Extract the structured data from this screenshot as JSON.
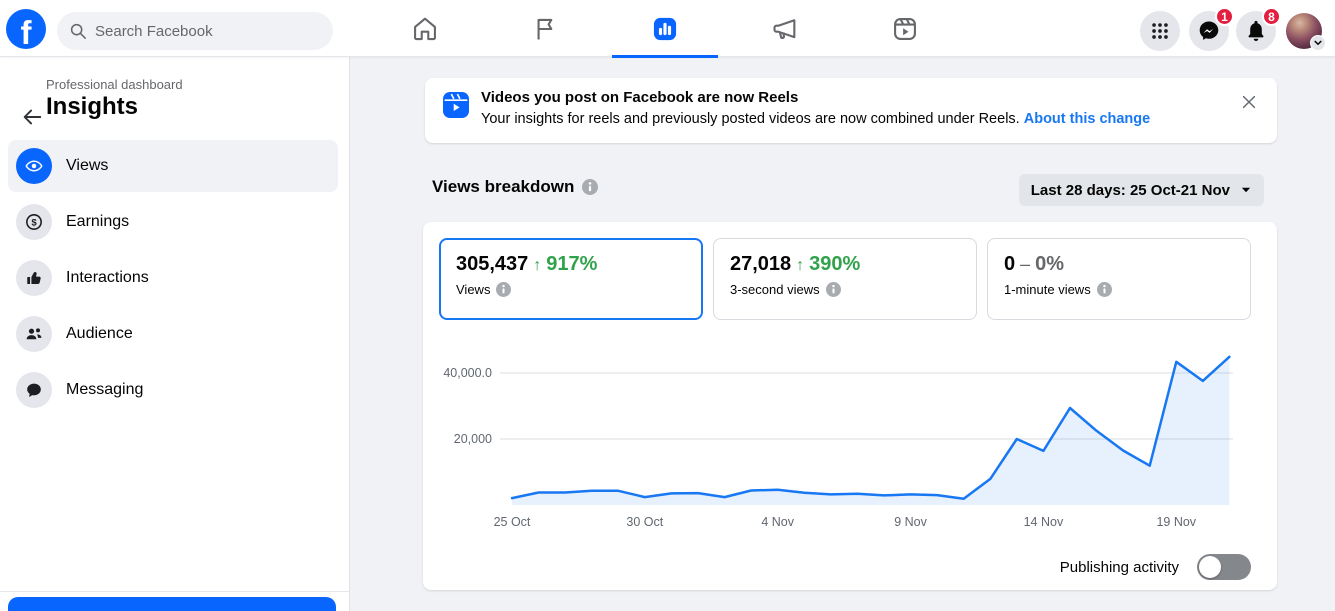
{
  "topbar": {
    "search_placeholder": "Search Facebook",
    "messenger_badge": "1",
    "notifications_badge": "8",
    "tabs": [
      "home",
      "pages",
      "insights",
      "ads",
      "reels"
    ],
    "active_tab": "insights"
  },
  "sidebar": {
    "eyebrow": "Professional dashboard",
    "title": "Insights",
    "items": [
      {
        "label": "Views",
        "icon": "eye-icon",
        "active": true
      },
      {
        "label": "Earnings",
        "icon": "dollar-icon",
        "active": false
      },
      {
        "label": "Interactions",
        "icon": "thumbs-up-icon",
        "active": false
      },
      {
        "label": "Audience",
        "icon": "people-icon",
        "active": false
      },
      {
        "label": "Messaging",
        "icon": "chat-icon",
        "active": false
      }
    ]
  },
  "banner": {
    "title": "Videos you post on Facebook are now Reels",
    "subtitle": "Your insights for reels and previously posted videos are now combined under Reels.",
    "link_label": "About this change"
  },
  "section": {
    "title": "Views breakdown",
    "date_range_label": "Last 28 days: 25 Oct-21 Nov"
  },
  "stats": [
    {
      "value": "305,437",
      "direction_glyph": "↑",
      "delta": "917%",
      "label": "Views",
      "active": true
    },
    {
      "value": "27,018",
      "direction_glyph": "↑",
      "delta": "390%",
      "label": "3-second views",
      "active": false
    },
    {
      "value": "0",
      "direction_glyph": "–",
      "delta": "0%",
      "label": "1-minute views",
      "active": false
    }
  ],
  "chart_data": {
    "type": "area",
    "series_name": "Views",
    "x": [
      "25 Oct",
      "26 Oct",
      "27 Oct",
      "28 Oct",
      "29 Oct",
      "30 Oct",
      "31 Oct",
      "1 Nov",
      "2 Nov",
      "3 Nov",
      "4 Nov",
      "5 Nov",
      "6 Nov",
      "7 Nov",
      "8 Nov",
      "9 Nov",
      "10 Nov",
      "11 Nov",
      "12 Nov",
      "13 Nov",
      "14 Nov",
      "15 Nov",
      "16 Nov",
      "17 Nov",
      "18 Nov",
      "19 Nov",
      "20 Nov",
      "21 Nov"
    ],
    "values": [
      2100,
      3800,
      3800,
      4300,
      4300,
      2400,
      3500,
      3600,
      2400,
      4400,
      4600,
      3700,
      3200,
      3400,
      2900,
      3200,
      3000,
      1900,
      7900,
      20000,
      16400,
      29400,
      22500,
      16500,
      11900,
      43400,
      37600,
      44900
    ],
    "ylim": [
      0,
      47000
    ],
    "yticks": [
      {
        "value": 20000,
        "label": "20,000"
      },
      {
        "value": 40000,
        "label": "40,000.0"
      }
    ],
    "xtick_indices": [
      0,
      5,
      10,
      15,
      20,
      25
    ],
    "xtick_labels": [
      "25 Oct",
      "30 Oct",
      "4 Nov",
      "9 Nov",
      "14 Nov",
      "19 Nov"
    ],
    "grid": "horizontal",
    "legend": "none",
    "line_color": "#1877f2",
    "fill_color": "rgba(24,119,242,0.10)"
  },
  "chart_footer": {
    "toggle_label": "Publishing activity",
    "toggle_state": "off"
  },
  "colors": {
    "accent": "#0866ff",
    "link_blue": "#1877f2",
    "positive_green": "#31a24c",
    "badge_red": "#e41e3f",
    "page_bg": "#f0f2f5"
  }
}
